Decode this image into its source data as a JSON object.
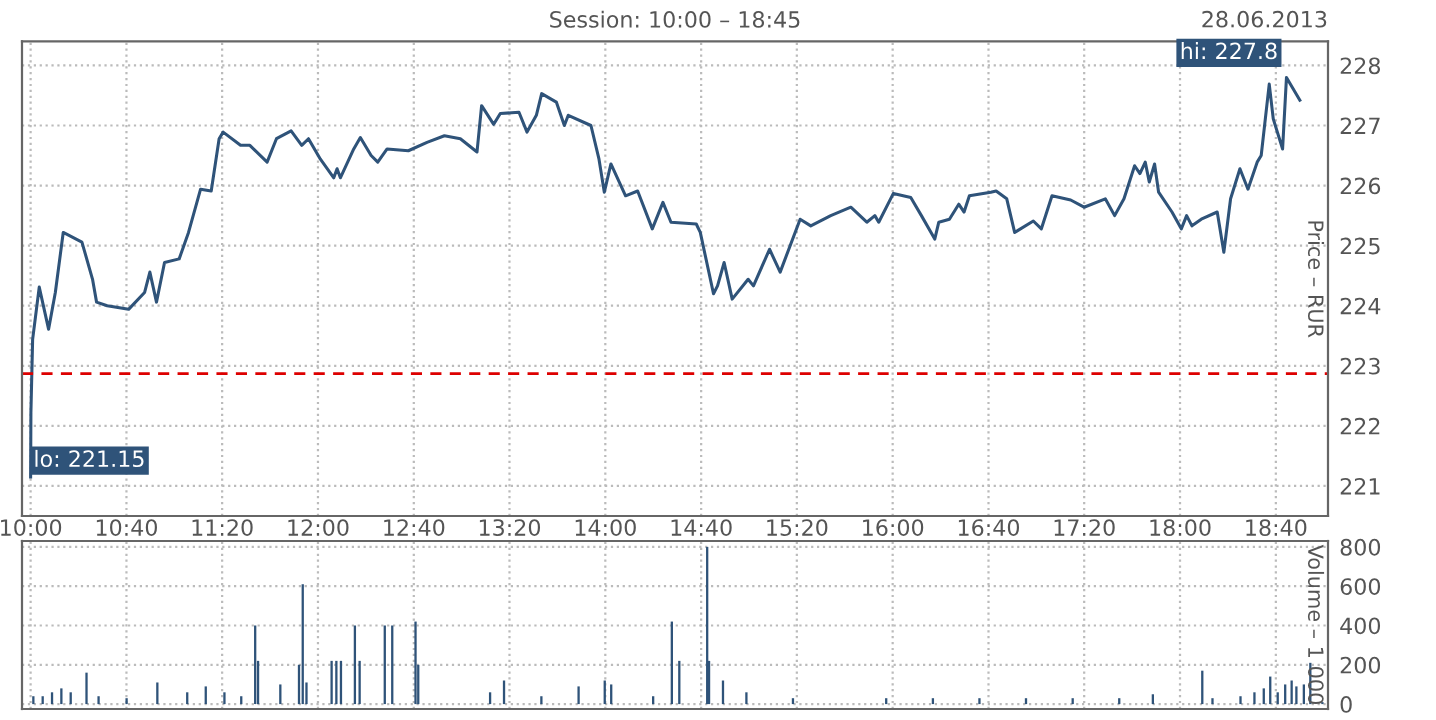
{
  "chart_data": [
    {
      "type": "line",
      "title": "Session: 10:00 – 18:45",
      "ylabel": "Price – RUR",
      "annotations": [
        "28.06.2013",
        {
          "text": "lo: 221.15",
          "x": 10.0,
          "y": 221.15
        },
        {
          "text": "hi: 227.8",
          "x": 18.741,
          "y": 227.8
        }
      ],
      "xlim": [
        9.94,
        19.03
      ],
      "ylim": [
        220.5,
        228.4
      ],
      "xticks": [
        {
          "value": 10.0,
          "label": "10:00"
        },
        {
          "value": 10.667,
          "label": "10:40"
        },
        {
          "value": 11.333,
          "label": "11:20"
        },
        {
          "value": 12.0,
          "label": "12:00"
        },
        {
          "value": 12.667,
          "label": "12:40"
        },
        {
          "value": 13.333,
          "label": "13:20"
        },
        {
          "value": 14.0,
          "label": "14:00"
        },
        {
          "value": 14.667,
          "label": "14:40"
        },
        {
          "value": 15.333,
          "label": "15:20"
        },
        {
          "value": 16.0,
          "label": "16:00"
        },
        {
          "value": 16.667,
          "label": "16:40"
        },
        {
          "value": 17.333,
          "label": "17:20"
        },
        {
          "value": 18.0,
          "label": "18:00"
        },
        {
          "value": 18.667,
          "label": "18:40"
        }
      ],
      "yticks": [
        221,
        222,
        223,
        224,
        225,
        226,
        227,
        228
      ],
      "grid": true,
      "line_style": "solid",
      "ref_lines": [
        {
          "axis": "y",
          "value": 222.87,
          "color": "#dd0000",
          "line_style": "dashed"
        }
      ],
      "series": [
        {
          "color": "#2f5379",
          "x": [
            10.0,
            10.002,
            10.014,
            10.06,
            10.125,
            10.172,
            10.227,
            10.357,
            10.431,
            10.459,
            10.533,
            10.682,
            10.793,
            10.83,
            10.876,
            10.932,
            11.034,
            11.099,
            11.183,
            11.257,
            11.312,
            11.34,
            11.461,
            11.526,
            11.646,
            11.711,
            11.813,
            11.887,
            11.934,
            12.017,
            12.11,
            12.133,
            12.156,
            12.249,
            12.295,
            12.37,
            12.416,
            12.481,
            12.629,
            12.759,
            12.88,
            12.991,
            13.107,
            13.139,
            13.223,
            13.269,
            13.399,
            13.455,
            13.52,
            13.557,
            13.659,
            13.715,
            13.742,
            13.9,
            13.956,
            13.993,
            14.039,
            14.141,
            14.225,
            14.327,
            14.401,
            14.457,
            14.633,
            14.661,
            14.753,
            14.781,
            14.827,
            14.883,
            14.994,
            15.031,
            15.143,
            15.217,
            15.356,
            15.43,
            15.569,
            15.709,
            15.82,
            15.876,
            15.903,
            16.005,
            16.126,
            16.2,
            16.293,
            16.321,
            16.395,
            16.46,
            16.497,
            16.534,
            16.683,
            16.72,
            16.794,
            16.849,
            16.979,
            17.035,
            17.109,
            17.239,
            17.332,
            17.48,
            17.545,
            17.61,
            17.684,
            17.721,
            17.758,
            17.786,
            17.823,
            17.851,
            17.944,
            18.009,
            18.046,
            18.083,
            18.148,
            18.259,
            18.305,
            18.352,
            18.417,
            18.473,
            18.537,
            18.565,
            18.621,
            18.649,
            18.714,
            18.741,
            18.834
          ],
          "values": [
            221.15,
            222.22,
            223.44,
            224.31,
            223.61,
            224.22,
            225.22,
            225.06,
            224.44,
            224.06,
            224.0,
            223.94,
            224.22,
            224.56,
            224.06,
            224.72,
            224.78,
            225.22,
            225.94,
            225.91,
            226.78,
            226.89,
            226.67,
            226.67,
            226.39,
            226.78,
            226.91,
            226.67,
            226.78,
            226.44,
            226.13,
            226.28,
            226.13,
            226.61,
            226.8,
            226.5,
            226.39,
            226.61,
            226.58,
            226.72,
            226.83,
            226.78,
            226.56,
            227.33,
            227.02,
            227.2,
            227.22,
            226.89,
            227.17,
            227.53,
            227.39,
            227.0,
            227.17,
            227.0,
            226.44,
            225.89,
            226.36,
            225.83,
            225.91,
            225.28,
            225.72,
            225.39,
            225.36,
            225.22,
            224.2,
            224.33,
            224.72,
            224.11,
            224.44,
            224.33,
            224.94,
            224.56,
            225.44,
            225.33,
            225.5,
            225.64,
            225.39,
            225.5,
            225.39,
            225.87,
            225.8,
            225.5,
            225.11,
            225.39,
            225.44,
            225.69,
            225.56,
            225.83,
            225.89,
            225.91,
            225.78,
            225.22,
            225.41,
            225.28,
            225.83,
            225.76,
            225.64,
            225.78,
            225.5,
            225.78,
            226.33,
            226.2,
            226.39,
            226.06,
            226.36,
            225.89,
            225.56,
            225.28,
            225.5,
            225.33,
            225.44,
            225.56,
            224.89,
            225.78,
            226.28,
            225.94,
            226.39,
            226.5,
            227.69,
            227.11,
            226.61,
            227.8,
            227.42
          ]
        }
      ]
    },
    {
      "type": "bar",
      "ylabel": "Volume – 1 000",
      "tick_labels": "y",
      "xlim": [
        9.94,
        19.03
      ],
      "ylim": [
        -25,
        830
      ],
      "xticks": [
        {
          "value": 10.0,
          "label": null
        },
        {
          "value": 10.667,
          "label": null
        },
        {
          "value": 11.333,
          "label": null
        },
        {
          "value": 12.0,
          "label": null
        },
        {
          "value": 12.667,
          "label": null
        },
        {
          "value": 13.333,
          "label": null
        },
        {
          "value": 14.0,
          "label": null
        },
        {
          "value": 14.667,
          "label": null
        },
        {
          "value": 15.333,
          "label": null
        },
        {
          "value": 16.0,
          "label": null
        },
        {
          "value": 16.667,
          "label": null
        },
        {
          "value": 17.333,
          "label": null
        },
        {
          "value": 18.0,
          "label": null
        },
        {
          "value": 18.667,
          "label": null
        }
      ],
      "yticks": [
        0,
        200,
        400,
        600,
        800
      ],
      "grid": true,
      "series": [
        {
          "color": "#2f5379",
          "x": [
            10.019,
            10.084,
            10.149,
            10.214,
            10.279,
            10.389,
            10.473,
            10.668,
            10.882,
            11.09,
            11.219,
            11.349,
            11.466,
            11.563,
            11.583,
            11.738,
            11.868,
            11.894,
            11.92,
            12.095,
            12.128,
            12.16,
            12.257,
            12.29,
            12.465,
            12.517,
            12.679,
            12.698,
            13.198,
            13.295,
            13.555,
            13.814,
            13.996,
            14.041,
            14.333,
            14.463,
            14.515,
            14.709,
            14.722,
            14.819,
            14.982,
            15.306,
            15.955,
            16.28,
            16.604,
            16.928,
            17.253,
            17.577,
            17.811,
            18.155,
            18.226,
            18.421,
            18.518,
            18.583,
            18.628,
            18.68,
            18.732,
            18.777,
            18.81,
            18.862,
            18.907,
            18.991
          ],
          "values": [
            40,
            40,
            60,
            80,
            60,
            160,
            40,
            30,
            110,
            60,
            90,
            60,
            40,
            400,
            220,
            100,
            200,
            610,
            110,
            220,
            220,
            220,
            400,
            220,
            400,
            400,
            420,
            200,
            60,
            120,
            40,
            90,
            120,
            100,
            40,
            420,
            220,
            800,
            220,
            120,
            60,
            30,
            30,
            30,
            30,
            30,
            30,
            30,
            50,
            170,
            30,
            40,
            60,
            80,
            140,
            60,
            100,
            120,
            90,
            100,
            210,
            10
          ]
        }
      ]
    }
  ]
}
